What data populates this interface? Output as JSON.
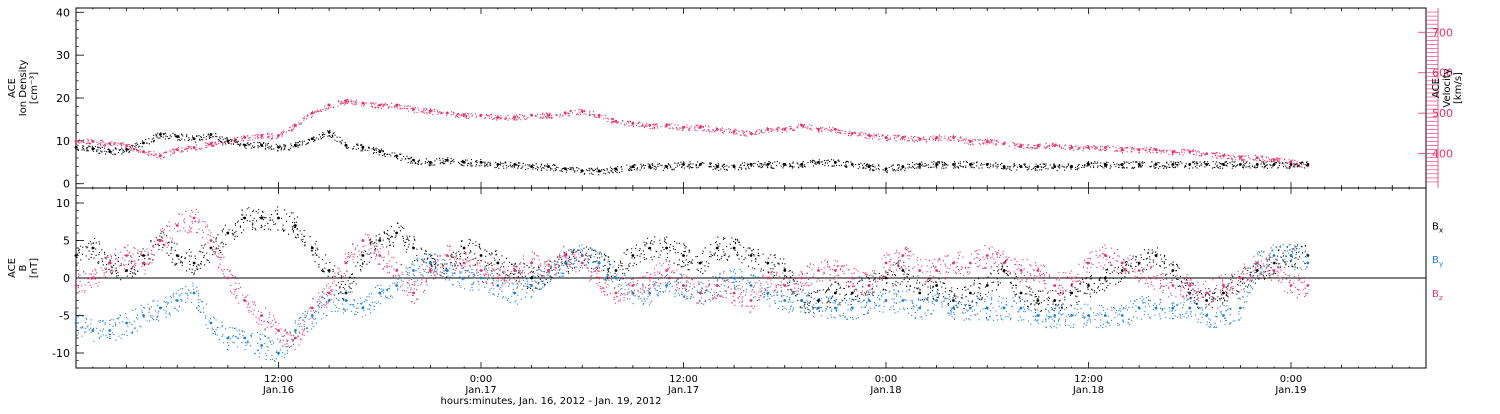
{
  "colors": {
    "black": "#000000",
    "pink": "#e8336a",
    "blue": "#1a7fdc",
    "axis": "#000000"
  },
  "xaxis": {
    "ticks": [
      {
        "t": 12,
        "time": "12:00",
        "date": "Jan.16"
      },
      {
        "t": 24,
        "time": "0:00",
        "date": "Jan.17"
      },
      {
        "t": 36,
        "time": "12:00",
        "date": "Jan.17"
      },
      {
        "t": 48,
        "time": "0:00",
        "date": "Jan.18"
      },
      {
        "t": 60,
        "time": "12:00",
        "date": "Jan.18"
      },
      {
        "t": 72,
        "time": "0:00",
        "date": "Jan.19"
      }
    ],
    "title": "hours:minutes, Jan. 16, 2012 - Jan. 19, 2012",
    "range": [
      0,
      80
    ]
  },
  "chart_data": [
    {
      "type": "scatter",
      "panel": "top",
      "left_axis": {
        "label_lines": [
          "ACE",
          "Ion Density",
          "[cm⁻³]"
        ],
        "ticks": [
          "0",
          "10",
          "20",
          "30",
          "40"
        ],
        "range": [
          -1,
          41
        ]
      },
      "right_axis": {
        "label_lines": [
          "ACE",
          "Velocity",
          "[km/s]"
        ],
        "ticks": [
          "400",
          "500",
          "600",
          "700"
        ],
        "range": [
          315,
          760
        ]
      },
      "series": [
        {
          "color": "black",
          "axis": "left",
          "x": [
            0,
            1,
            2,
            3,
            4,
            5,
            6,
            7,
            8,
            9,
            10,
            11,
            12,
            13,
            14,
            15,
            16,
            17,
            18,
            19,
            20,
            21,
            22,
            23,
            24,
            25,
            26,
            27,
            28,
            29,
            30,
            31,
            32,
            33,
            34,
            35,
            36,
            37,
            38,
            39,
            40,
            41,
            42,
            43,
            44,
            45,
            46,
            47,
            48,
            49,
            50,
            51,
            52,
            53,
            54,
            55,
            56,
            57,
            58,
            59,
            60,
            61,
            62,
            63,
            64,
            65,
            66,
            67,
            68,
            69,
            70,
            71,
            72,
            73
          ],
          "y": [
            8.5,
            8.2,
            7.5,
            8,
            9.5,
            11.5,
            11,
            10.5,
            11.5,
            10,
            9,
            9,
            8.5,
            9,
            10.5,
            12,
            9,
            8.5,
            7.5,
            6.5,
            5.5,
            5,
            5.5,
            5,
            5,
            4.5,
            4.5,
            4,
            4,
            3.5,
            3,
            3,
            3.5,
            4,
            4,
            4,
            4.5,
            4.5,
            4,
            4,
            4.5,
            4.5,
            4.5,
            4.5,
            5,
            5,
            4.5,
            4,
            3.5,
            4,
            4.5,
            4.5,
            4.5,
            4.5,
            4.5,
            4,
            4,
            4,
            4,
            4,
            4.5,
            4.5,
            4.5,
            4.5,
            4.5,
            4.5,
            4.5,
            4.5,
            4.5,
            4.5,
            4.5,
            4.5,
            4.5,
            4.5
          ]
        },
        {
          "color": "pink",
          "axis": "right",
          "x": [
            0,
            1,
            2,
            3,
            4,
            5,
            6,
            7,
            8,
            9,
            10,
            11,
            12,
            13,
            14,
            15,
            16,
            17,
            18,
            19,
            20,
            21,
            22,
            23,
            24,
            25,
            26,
            27,
            28,
            29,
            30,
            31,
            32,
            33,
            34,
            35,
            36,
            37,
            38,
            39,
            40,
            41,
            42,
            43,
            44,
            45,
            46,
            47,
            48,
            49,
            50,
            51,
            52,
            53,
            54,
            55,
            56,
            57,
            58,
            59,
            60,
            61,
            62,
            63,
            64,
            65,
            66,
            67,
            68,
            69,
            70,
            71,
            72,
            73
          ],
          "y": [
            430,
            430,
            425,
            420,
            405,
            395,
            410,
            415,
            425,
            430,
            440,
            445,
            445,
            470,
            500,
            520,
            530,
            525,
            520,
            520,
            510,
            505,
            500,
            495,
            495,
            490,
            490,
            495,
            495,
            500,
            505,
            495,
            480,
            475,
            470,
            470,
            465,
            465,
            460,
            455,
            450,
            460,
            460,
            470,
            460,
            460,
            450,
            445,
            440,
            440,
            435,
            440,
            440,
            430,
            430,
            425,
            420,
            420,
            420,
            415,
            415,
            415,
            410,
            410,
            410,
            405,
            405,
            400,
            395,
            390,
            390,
            385,
            380,
            370
          ]
        }
      ]
    },
    {
      "type": "scatter",
      "panel": "bottom",
      "left_axis": {
        "label_lines": [
          "ACE",
          "B",
          "[nT]"
        ],
        "ticks": [
          "-10",
          "-5",
          "0",
          "5",
          "10"
        ],
        "range": [
          -12,
          12
        ]
      },
      "legend": [
        {
          "label": "B",
          "sub": "x",
          "color": "black"
        },
        {
          "label": "B",
          "sub": "y",
          "color": "blue"
        },
        {
          "label": "B",
          "sub": "z",
          "color": "pink"
        }
      ],
      "series": [
        {
          "name": "Bx",
          "color": "black",
          "x": [
            0,
            1,
            2,
            3,
            4,
            5,
            6,
            7,
            8,
            9,
            10,
            11,
            12,
            13,
            14,
            15,
            16,
            17,
            18,
            19,
            20,
            21,
            22,
            23,
            24,
            25,
            26,
            27,
            28,
            29,
            30,
            31,
            32,
            33,
            34,
            35,
            36,
            37,
            38,
            39,
            40,
            41,
            42,
            43,
            44,
            45,
            46,
            47,
            48,
            49,
            50,
            51,
            52,
            53,
            54,
            55,
            56,
            57,
            58,
            59,
            60,
            61,
            62,
            63,
            64,
            65,
            66,
            67,
            68,
            69,
            70,
            71,
            72,
            73
          ],
          "y": [
            3,
            4,
            2,
            1,
            3,
            5,
            3,
            2,
            4,
            6,
            8,
            8,
            8,
            7,
            4,
            1,
            -2,
            3,
            5,
            6,
            4,
            2,
            1,
            4,
            3,
            2,
            1,
            0,
            1,
            2,
            3,
            2,
            1,
            3,
            4,
            4,
            3,
            2,
            4,
            4,
            3,
            2,
            1,
            -3,
            -3,
            -2,
            -2,
            -1,
            0,
            1,
            -2,
            -1,
            -3,
            -2,
            -1,
            1,
            -2,
            -3,
            -3,
            -2,
            -1,
            0,
            1,
            2,
            3,
            1,
            -2,
            -3,
            -2,
            0,
            1,
            2,
            3,
            3
          ]
        },
        {
          "name": "By",
          "color": "blue",
          "x": [
            0,
            1,
            2,
            3,
            4,
            5,
            6,
            7,
            8,
            9,
            10,
            11,
            12,
            13,
            14,
            15,
            16,
            17,
            18,
            19,
            20,
            21,
            22,
            23,
            24,
            25,
            26,
            27,
            28,
            29,
            30,
            31,
            32,
            33,
            34,
            35,
            36,
            37,
            38,
            39,
            40,
            41,
            42,
            43,
            44,
            45,
            46,
            47,
            48,
            49,
            50,
            51,
            52,
            53,
            54,
            55,
            56,
            57,
            58,
            59,
            60,
            61,
            62,
            63,
            64,
            65,
            66,
            67,
            68,
            69,
            70,
            71,
            72,
            73
          ],
          "y": [
            -6,
            -7,
            -7,
            -6,
            -5,
            -4,
            -3,
            -2,
            -6,
            -8,
            -8,
            -9,
            -10,
            -7,
            -5,
            -3,
            -3,
            -4,
            -2,
            -1,
            1,
            2,
            1,
            0,
            0,
            -1,
            -2,
            -1,
            1,
            2,
            3,
            2,
            0,
            -2,
            -2,
            -1,
            -1,
            -2,
            -1,
            0,
            -1,
            -2,
            -3,
            -3,
            -4,
            -4,
            -4,
            -3,
            -3,
            -3,
            -4,
            -3,
            -4,
            -4,
            -4,
            -4,
            -4,
            -5,
            -5,
            -5,
            -5,
            -5,
            -5,
            -4,
            -4,
            -4,
            -4,
            -5,
            -5,
            -4,
            2,
            3,
            3,
            2
          ]
        },
        {
          "name": "Bz",
          "color": "pink",
          "x": [
            0,
            1,
            2,
            3,
            4,
            5,
            6,
            7,
            8,
            9,
            10,
            11,
            12,
            13,
            14,
            15,
            16,
            17,
            18,
            19,
            20,
            21,
            22,
            23,
            24,
            25,
            26,
            27,
            28,
            29,
            30,
            31,
            32,
            33,
            34,
            35,
            36,
            37,
            38,
            39,
            40,
            41,
            42,
            43,
            44,
            45,
            46,
            47,
            48,
            49,
            50,
            51,
            52,
            53,
            54,
            55,
            56,
            57,
            58,
            59,
            60,
            61,
            62,
            63,
            64,
            65,
            66,
            67,
            68,
            69,
            70,
            71,
            72,
            73
          ],
          "y": [
            -1,
            0,
            2,
            3,
            2,
            5,
            7,
            8,
            5,
            0,
            -3,
            -5,
            -7,
            -8,
            -4,
            -2,
            2,
            5,
            3,
            1,
            -2,
            1,
            3,
            2,
            1,
            0,
            1,
            2,
            1,
            3,
            2,
            0,
            -2,
            -1,
            0,
            1,
            -1,
            -2,
            -1,
            -2,
            -3,
            0,
            -1,
            0,
            1,
            1,
            0,
            -1,
            2,
            3,
            1,
            1,
            2,
            2,
            3,
            2,
            1,
            1,
            -1,
            0,
            2,
            3,
            2,
            1,
            0,
            -1,
            -1,
            -2,
            -1,
            0,
            2,
            1,
            -1,
            -1
          ]
        }
      ]
    }
  ]
}
